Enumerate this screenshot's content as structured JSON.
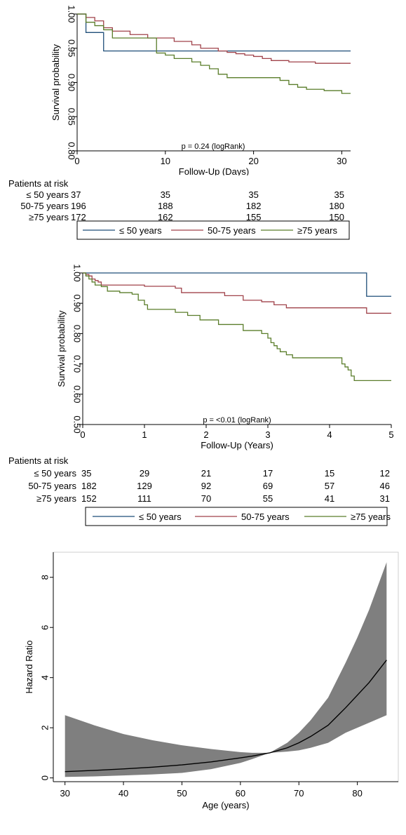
{
  "colors": {
    "le50": "#1f4e79",
    "mid": "#a0424a",
    "ge75": "#5a7d2a",
    "band": "#7f7f7f",
    "axis": "#000000"
  },
  "chart_data": [
    {
      "type": "line",
      "title": "",
      "xlabel": "Follow-Up (Days)",
      "ylabel": "Survival probability",
      "xlim": [
        0,
        31
      ],
      "ylim": [
        0.8,
        1.0
      ],
      "xticks": [
        "0",
        "10",
        "20",
        "30"
      ],
      "yticks": [
        "0.80",
        "0.85",
        "0.90",
        "0.95",
        "1.00"
      ],
      "annotation": "p = 0.24 (logRank)",
      "legend": [
        "≤ 50 years",
        "50-75 years",
        "≥75 years"
      ],
      "series": [
        {
          "name": "≤ 50 years",
          "x": [
            0,
            1,
            3,
            31
          ],
          "y": [
            1.0,
            0.973,
            0.946,
            0.946
          ]
        },
        {
          "name": "50-75 years",
          "x": [
            0,
            1,
            2,
            3,
            4,
            6,
            8,
            11,
            13,
            14,
            16,
            17,
            18,
            19,
            20,
            21,
            22,
            24,
            27,
            31
          ],
          "y": [
            1.0,
            0.995,
            0.99,
            0.98,
            0.975,
            0.97,
            0.965,
            0.96,
            0.955,
            0.95,
            0.946,
            0.944,
            0.942,
            0.94,
            0.938,
            0.935,
            0.932,
            0.93,
            0.928,
            0.928
          ]
        },
        {
          "name": "≥75 years",
          "x": [
            0,
            1,
            2,
            3,
            4,
            9,
            10,
            11,
            13,
            14,
            15,
            16,
            17,
            22,
            23,
            24,
            25,
            26,
            28,
            30,
            31
          ],
          "y": [
            1.0,
            0.988,
            0.983,
            0.977,
            0.965,
            0.943,
            0.94,
            0.935,
            0.93,
            0.925,
            0.92,
            0.912,
            0.907,
            0.907,
            0.903,
            0.897,
            0.893,
            0.89,
            0.888,
            0.884,
            0.884
          ]
        }
      ],
      "at_risk": {
        "heading": "Patients at risk",
        "rows": [
          {
            "label": "≤ 50 years",
            "values": [
              "37",
              "35",
              "35",
              "35"
            ]
          },
          {
            "label": "50-75 years",
            "values": [
              "196",
              "188",
              "182",
              "180"
            ]
          },
          {
            "label": "≥75 years",
            "values": [
              "172",
              "162",
              "155",
              "150"
            ]
          }
        ]
      }
    },
    {
      "type": "line",
      "title": "",
      "xlabel": "Follow-Up (Years)",
      "ylabel": "Survival probability",
      "xlim": [
        0,
        5
      ],
      "ylim": [
        0.5,
        1.0
      ],
      "xticks": [
        "0",
        "1",
        "2",
        "3",
        "4",
        "5"
      ],
      "yticks": [
        "0.50",
        "0.60",
        "0.70",
        "0.80",
        "0.90",
        "1.00"
      ],
      "annotation": "p = <0.01 (logRank)",
      "legend": [
        "≤ 50 years",
        "50-75 years",
        "≥75 years"
      ],
      "series": [
        {
          "name": "≤ 50 years",
          "x": [
            0,
            4.6,
            5
          ],
          "y": [
            1.0,
            0.923,
            0.923
          ]
        },
        {
          "name": "50-75 years",
          "x": [
            0,
            0.05,
            0.1,
            0.15,
            0.2,
            0.25,
            0.3,
            1.0,
            1.5,
            1.6,
            2.3,
            2.6,
            2.9,
            3.1,
            3.3,
            4.0,
            4.6,
            5.0
          ],
          "y": [
            1.0,
            0.995,
            0.99,
            0.98,
            0.975,
            0.97,
            0.96,
            0.956,
            0.95,
            0.935,
            0.925,
            0.91,
            0.905,
            0.895,
            0.885,
            0.885,
            0.867,
            0.867
          ]
        },
        {
          "name": "≥75 years",
          "x": [
            0,
            0.05,
            0.1,
            0.15,
            0.2,
            0.3,
            0.4,
            0.6,
            0.8,
            0.9,
            1.0,
            1.05,
            1.5,
            1.7,
            1.9,
            2.2,
            2.6,
            2.9,
            3.0,
            3.05,
            3.1,
            3.15,
            3.2,
            3.3,
            3.4,
            3.5,
            4.0,
            4.2,
            4.25,
            4.3,
            4.35,
            4.4,
            5.0
          ],
          "y": [
            1.0,
            0.99,
            0.98,
            0.97,
            0.96,
            0.955,
            0.94,
            0.935,
            0.93,
            0.91,
            0.895,
            0.88,
            0.87,
            0.86,
            0.845,
            0.83,
            0.81,
            0.8,
            0.785,
            0.77,
            0.76,
            0.75,
            0.74,
            0.73,
            0.72,
            0.72,
            0.72,
            0.7,
            0.69,
            0.68,
            0.66,
            0.645,
            0.645
          ]
        }
      ],
      "at_risk": {
        "heading": "Patients at risk",
        "rows": [
          {
            "label": "≤ 50 years",
            "values": [
              "35",
              "29",
              "21",
              "17",
              "15",
              "12"
            ]
          },
          {
            "label": "50-75 years",
            "values": [
              "182",
              "129",
              "92",
              "69",
              "57",
              "46"
            ]
          },
          {
            "label": "≥75 years",
            "values": [
              "152",
              "111",
              "70",
              "55",
              "41",
              "31"
            ]
          }
        ]
      }
    },
    {
      "type": "area",
      "title": "",
      "xlabel": "Age (years)",
      "ylabel": "Hazard Ratio",
      "xlim": [
        28,
        87
      ],
      "ylim": [
        -0.15,
        9.0
      ],
      "xticks": [
        "30",
        "40",
        "50",
        "60",
        "70",
        "80"
      ],
      "yticks": [
        "0",
        "2",
        "4",
        "6",
        "8"
      ],
      "series": [
        {
          "name": "",
          "role": "estimate",
          "x": [
            30,
            35,
            40,
            45,
            50,
            55,
            60,
            62,
            65,
            68,
            70,
            72,
            75,
            78,
            80,
            82,
            85
          ],
          "y": [
            0.25,
            0.3,
            0.36,
            0.43,
            0.52,
            0.64,
            0.8,
            0.87,
            1.0,
            1.2,
            1.4,
            1.65,
            2.1,
            2.8,
            3.3,
            3.8,
            4.7
          ]
        },
        {
          "name": "",
          "role": "upper",
          "x": [
            30,
            35,
            40,
            45,
            50,
            55,
            60,
            62,
            65,
            68,
            70,
            72,
            75,
            78,
            80,
            82,
            85
          ],
          "y": [
            2.5,
            2.1,
            1.75,
            1.5,
            1.3,
            1.15,
            1.03,
            1.0,
            1.0,
            1.4,
            1.8,
            2.3,
            3.2,
            4.6,
            5.6,
            6.7,
            8.6
          ]
        },
        {
          "name": "",
          "role": "lower",
          "x": [
            30,
            35,
            40,
            45,
            50,
            55,
            60,
            62,
            65,
            68,
            70,
            72,
            75,
            78,
            80,
            82,
            85
          ],
          "y": [
            0.04,
            0.06,
            0.1,
            0.14,
            0.2,
            0.35,
            0.6,
            0.75,
            1.0,
            1.05,
            1.1,
            1.2,
            1.4,
            1.8,
            2.0,
            2.2,
            2.5
          ]
        }
      ]
    }
  ]
}
